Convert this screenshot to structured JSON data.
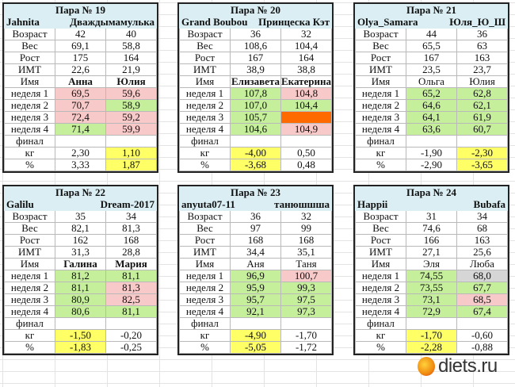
{
  "row_labels": {
    "age": "Возраст",
    "weight": "Вес",
    "height": "Рост",
    "bmi": "ИМТ",
    "name": "Имя",
    "weeks": [
      "неделя 1",
      "неделя 2",
      "неделя 3",
      "неделя 4"
    ],
    "final": "финал",
    "kg": "кг",
    "pct": "%"
  },
  "pairs": [
    {
      "title": "Пара № 19",
      "nick1": "Jahnita",
      "nick2": "Дваждымамулька",
      "names_bold": true,
      "p1": {
        "age": "42",
        "weight": "69,1",
        "height": "175",
        "bmi": "22,6",
        "name": "Анна",
        "weeks": [
          "69,5",
          "70,7",
          "72,4",
          "71,4"
        ],
        "week_status": [
          "pink",
          "pink",
          "pink",
          "green"
        ],
        "kg": "2,30",
        "pct": "3,33",
        "highlight": false
      },
      "p2": {
        "age": "40",
        "weight": "58,8",
        "height": "164",
        "bmi": "21,9",
        "name": "Юлия",
        "weeks": [
          "59,6",
          "58,9",
          "59,2",
          "59,9"
        ],
        "week_status": [
          "pink",
          "green",
          "pink",
          "pink"
        ],
        "kg": "1,10",
        "pct": "1,87",
        "highlight": true
      }
    },
    {
      "title": "Пара № 20",
      "nick1": "Grand Boubou",
      "nick2": "Принцеска Кэт",
      "names_bold": true,
      "p1": {
        "age": "36",
        "weight": "108,6",
        "height": "167",
        "bmi": "38,9",
        "name": "Елизавета",
        "weeks": [
          "107,8",
          "107,0",
          "105,7",
          "104,6"
        ],
        "week_status": [
          "green",
          "green",
          "green",
          "green"
        ],
        "kg": "-4,00",
        "pct": "-3,68",
        "highlight": true
      },
      "p2": {
        "age": "32",
        "weight": "104,4",
        "height": "164",
        "bmi": "38,8",
        "name": "Екатерина",
        "weeks": [
          "104,8",
          "104,4",
          "",
          "104,9"
        ],
        "week_status": [
          "pink",
          "green",
          "orange",
          "pink"
        ],
        "kg": "0,50",
        "pct": "0,48",
        "highlight": false
      }
    },
    {
      "title": "Пара № 21",
      "nick1": "Olya_Samara",
      "nick2": "Юля_Ю_Ш",
      "names_bold": false,
      "p1": {
        "age": "44",
        "weight": "65,5",
        "height": "167",
        "bmi": "23,5",
        "name": "Ольга",
        "weeks": [
          "65,2",
          "64,6",
          "64,1",
          "63,6"
        ],
        "week_status": [
          "green",
          "green",
          "green",
          "green"
        ],
        "kg": "-1,90",
        "pct": "-2,90",
        "highlight": false
      },
      "p2": {
        "age": "36",
        "weight": "63",
        "height": "163",
        "bmi": "23,7",
        "name": "Юлия",
        "weeks": [
          "62,8",
          "62,1",
          "61,9",
          "60,7"
        ],
        "week_status": [
          "green",
          "green",
          "green",
          "green"
        ],
        "kg": "-2,30",
        "pct": "-3,65",
        "highlight": true
      }
    },
    {
      "title": "Пара № 22",
      "nick1": "Galilu",
      "nick2": "Dream-2017",
      "names_bold": true,
      "p1": {
        "age": "35",
        "weight": "82,1",
        "height": "162",
        "bmi": "31,3",
        "name": "Галина",
        "weeks": [
          "81,2",
          "81,1",
          "80,9",
          "80,6"
        ],
        "week_status": [
          "green",
          "green",
          "green",
          "green"
        ],
        "kg": "-1,50",
        "pct": "-1,83",
        "highlight": true
      },
      "p2": {
        "age": "34",
        "weight": "81,3",
        "height": "168",
        "bmi": "28,8",
        "name": "Мария",
        "weeks": [
          "81,1",
          "81,3",
          "82,5",
          "81,1"
        ],
        "week_status": [
          "green",
          "pink",
          "pink",
          "green"
        ],
        "kg": "-0,20",
        "pct": "-0,25",
        "highlight": false
      }
    },
    {
      "title": "Пара № 23",
      "nick1": "anyuta07-11",
      "nick2": "танюшшша",
      "names_bold": false,
      "p1": {
        "age": "36",
        "weight": "97",
        "height": "168",
        "bmi": "34,4",
        "name": "Аня",
        "weeks": [
          "96,9",
          "95,9",
          "95,7",
          "92,1"
        ],
        "week_status": [
          "green",
          "green",
          "green",
          "green"
        ],
        "kg": "-4,90",
        "pct": "-5,05",
        "highlight": true
      },
      "p2": {
        "age": "32",
        "weight": "99",
        "height": "168",
        "bmi": "35,1",
        "name": "Таня",
        "weeks": [
          "100,7",
          "99,3",
          "97,5",
          "97,3"
        ],
        "week_status": [
          "pink",
          "green",
          "green",
          "green"
        ],
        "kg": "-1,70",
        "pct": "-1,72",
        "highlight": false
      }
    },
    {
      "title": "Пара № 24",
      "nick1": "Happii",
      "nick2": "Bubafa",
      "names_bold": false,
      "p1": {
        "age": "31",
        "weight": "74,6",
        "height": "166",
        "bmi": "27,1",
        "name": "Эля",
        "weeks": [
          "74,55",
          "73,55",
          "73,1",
          "72,9"
        ],
        "week_status": [
          "green",
          "green",
          "green",
          "green"
        ],
        "kg": "-1,70",
        "pct": "-2,28",
        "highlight": true
      },
      "p2": {
        "age": "34",
        "weight": "68",
        "height": "163",
        "bmi": "25,6",
        "name": "Люба",
        "weeks": [
          "68,0",
          "67,7",
          "68,5",
          "67,4"
        ],
        "week_status": [
          "gray",
          "green",
          "pink",
          "green"
        ],
        "kg": "-0,60",
        "pct": "-0,88",
        "highlight": false
      }
    }
  ],
  "watermark": "diets.ru"
}
